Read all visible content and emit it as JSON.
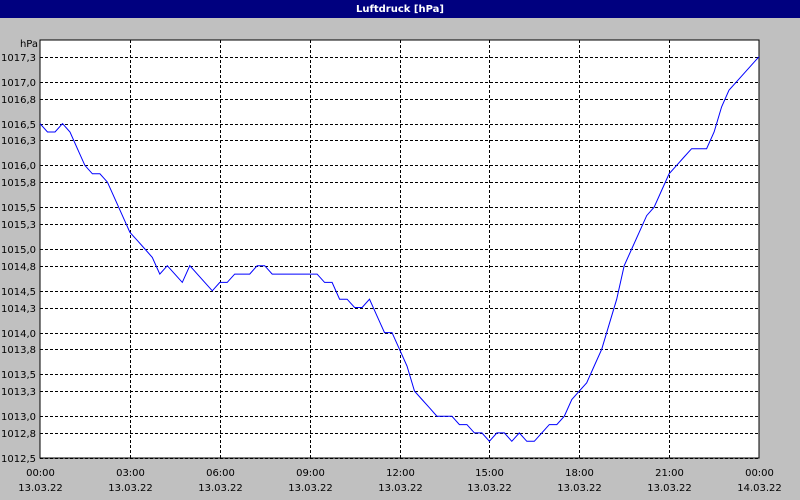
{
  "window": {
    "title": "Luftdruck [hPa]"
  },
  "colors": {
    "title_bar": "#00007f",
    "background": "#c0c0c0",
    "plot_area": "#ffffff",
    "line": "#0000ff",
    "grid": "#000000"
  },
  "chart_data": {
    "type": "line",
    "title": "Luftdruck [hPa]",
    "ylabel": "hPa",
    "xlabel": "",
    "ylim": [
      1012.5,
      1017.5
    ],
    "y_ticks": [
      "1017,3",
      "1017,0",
      "1016,8",
      "1016,5",
      "1016,3",
      "1016,0",
      "1015,8",
      "1015,5",
      "1015,3",
      "1015,0",
      "1014,8",
      "1014,5",
      "1014,3",
      "1014,0",
      "1013,8",
      "1013,5",
      "1013,3",
      "1013,0",
      "1012,8",
      "1012,5"
    ],
    "x_ticks": [
      {
        "time": "00:00",
        "date": "13.03.22"
      },
      {
        "time": "03:00",
        "date": "13.03.22"
      },
      {
        "time": "06:00",
        "date": "13.03.22"
      },
      {
        "time": "09:00",
        "date": "13.03.22"
      },
      {
        "time": "12:00",
        "date": "13.03.22"
      },
      {
        "time": "15:00",
        "date": "13.03.22"
      },
      {
        "time": "18:00",
        "date": "13.03.22"
      },
      {
        "time": "21:00",
        "date": "13.03.22"
      },
      {
        "time": "00:00",
        "date": "14.03.22"
      }
    ],
    "grid": true,
    "series": [
      {
        "x": [
          "00:00",
          "00:15",
          "00:30",
          "00:45",
          "01:00",
          "01:15",
          "01:30",
          "01:45",
          "02:00",
          "02:15",
          "02:30",
          "02:45",
          "03:00",
          "03:15",
          "03:30",
          "03:45",
          "04:00",
          "04:15",
          "04:30",
          "04:45",
          "05:00",
          "05:15",
          "05:30",
          "05:45",
          "06:00",
          "06:15",
          "06:30",
          "06:45",
          "07:00",
          "07:15",
          "07:30",
          "07:45",
          "08:00",
          "08:15",
          "08:30",
          "08:45",
          "09:00",
          "09:15",
          "09:30",
          "09:45",
          "10:00",
          "10:15",
          "10:30",
          "10:45",
          "11:00",
          "11:15",
          "11:30",
          "11:45",
          "12:00",
          "12:15",
          "12:30",
          "12:45",
          "13:00",
          "13:15",
          "13:30",
          "13:45",
          "14:00",
          "14:15",
          "14:30",
          "14:45",
          "15:00",
          "15:15",
          "15:30",
          "15:45",
          "16:00",
          "16:15",
          "16:30",
          "16:45",
          "17:00",
          "17:15",
          "17:30",
          "17:45",
          "18:00",
          "18:15",
          "18:30",
          "18:45",
          "19:00",
          "19:15",
          "19:30",
          "19:45",
          "20:00",
          "20:15",
          "20:30",
          "20:45",
          "21:00",
          "21:15",
          "21:30",
          "21:45",
          "22:00",
          "22:15",
          "22:30",
          "22:45",
          "23:00",
          "23:15",
          "23:30",
          "23:45",
          "00:00"
        ],
        "values": [
          1016.5,
          1016.4,
          1016.4,
          1016.5,
          1016.4,
          1016.2,
          1016.0,
          1015.9,
          1015.9,
          1015.8,
          1015.6,
          1015.4,
          1015.2,
          1015.1,
          1015.0,
          1014.9,
          1014.7,
          1014.8,
          1014.7,
          1014.6,
          1014.8,
          1014.7,
          1014.6,
          1014.5,
          1014.6,
          1014.6,
          1014.7,
          1014.7,
          1014.7,
          1014.8,
          1014.8,
          1014.7,
          1014.7,
          1014.7,
          1014.7,
          1014.7,
          1014.7,
          1014.7,
          1014.6,
          1014.6,
          1014.4,
          1014.4,
          1014.3,
          1014.3,
          1014.4,
          1014.2,
          1014.0,
          1014.0,
          1013.8,
          1013.6,
          1013.3,
          1013.2,
          1013.1,
          1013.0,
          1013.0,
          1013.0,
          1012.9,
          1012.9,
          1012.8,
          1012.8,
          1012.7,
          1012.8,
          1012.8,
          1012.7,
          1012.8,
          1012.7,
          1012.7,
          1012.8,
          1012.9,
          1012.9,
          1013.0,
          1013.2,
          1013.3,
          1013.4,
          1013.6,
          1013.8,
          1014.1,
          1014.4,
          1014.8,
          1015.0,
          1015.2,
          1015.4,
          1015.5,
          1015.7,
          1015.9,
          1016.0,
          1016.1,
          1016.2,
          1016.2,
          1016.2,
          1016.4,
          1016.7,
          1016.9,
          1017.0,
          1017.1,
          1017.2,
          1017.3
        ]
      }
    ]
  }
}
